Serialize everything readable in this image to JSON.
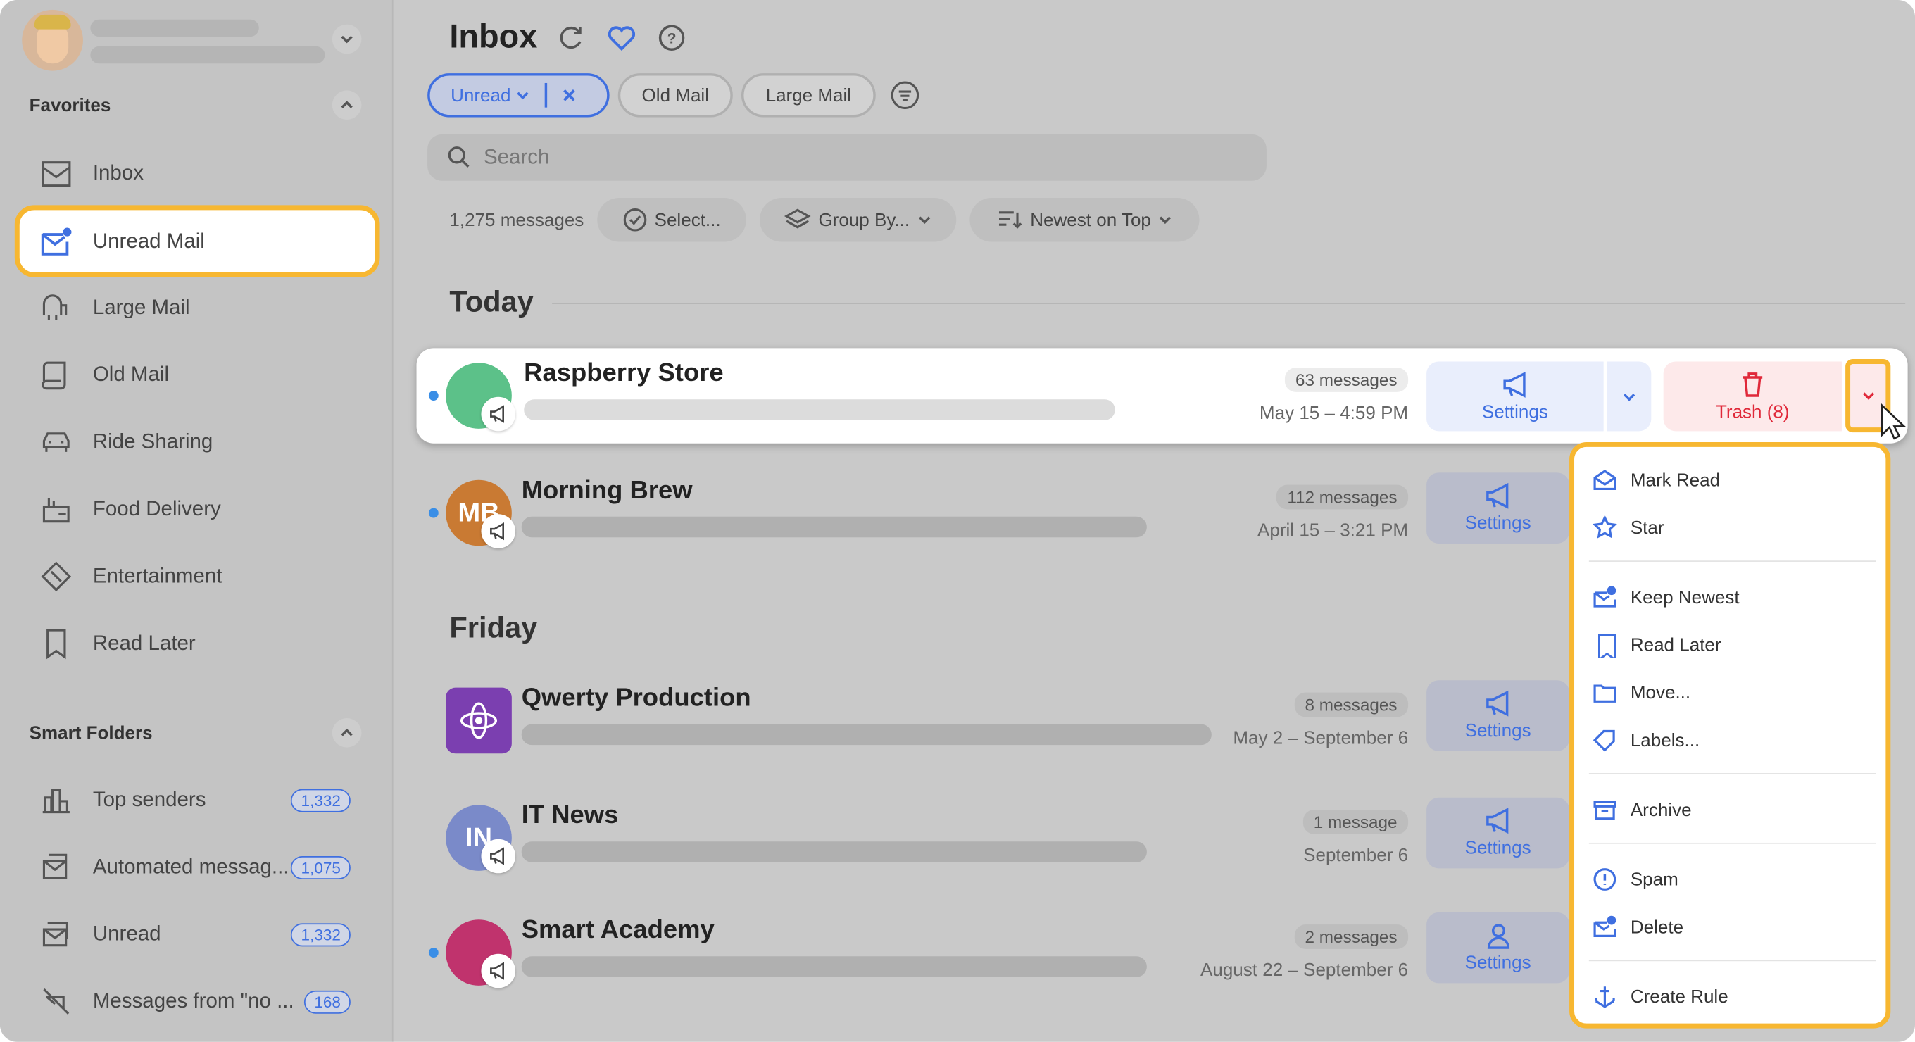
{
  "colors": {
    "accent": "#3f6fe0",
    "highlight": "#f7b731",
    "danger": "#e0293a"
  },
  "sidebar": {
    "favorites_label": "Favorites",
    "favorites": [
      {
        "label": "Inbox",
        "icon": "inbox-icon"
      },
      {
        "label": "Unread Mail",
        "icon": "unread-mail-icon",
        "active": true
      },
      {
        "label": "Large Mail",
        "icon": "elephant-icon"
      },
      {
        "label": "Old Mail",
        "icon": "scroll-icon"
      },
      {
        "label": "Ride Sharing",
        "icon": "car-icon"
      },
      {
        "label": "Food Delivery",
        "icon": "food-icon"
      },
      {
        "label": "Entertainment",
        "icon": "ticket-icon"
      },
      {
        "label": "Read Later",
        "icon": "bookmark-icon"
      }
    ],
    "smart_label": "Smart Folders",
    "smart": [
      {
        "label": "Top senders",
        "count": "1,332",
        "icon": "chart-icon"
      },
      {
        "label": "Automated messag...",
        "count": "1,075",
        "icon": "robot-mail-icon"
      },
      {
        "label": "Unread",
        "count": "1,332",
        "icon": "unread-stack-icon"
      },
      {
        "label": "Messages from \"no ...",
        "count": "168",
        "icon": "no-reply-icon"
      }
    ]
  },
  "header": {
    "title": "Inbox"
  },
  "filters": {
    "active": "Unread",
    "chips": [
      "Old Mail",
      "Large Mail"
    ]
  },
  "search": {
    "placeholder": "Search"
  },
  "toolbar": {
    "count": "1,275 messages",
    "select": "Select...",
    "group": "Group By...",
    "sort": "Newest on Top"
  },
  "groups": [
    "Today",
    "Friday"
  ],
  "senders": [
    {
      "name": "Raspberry Store",
      "count": "63 messages",
      "date": "May 15 – 4:59 PM",
      "unread": true,
      "avatar_color": "#5cc189",
      "initials": "",
      "action": "Settings",
      "trash": "Trash (8)"
    },
    {
      "name": "Morning Brew",
      "count": "112 messages",
      "date": "April 15 – 3:21 PM",
      "unread": true,
      "avatar_color": "#c97a33",
      "initials": "MB",
      "action": "Settings"
    },
    {
      "name": "Qwerty Production",
      "count": "8 messages",
      "date": "May 2 – September 6",
      "unread": false,
      "avatar_color": "#7b3fb0",
      "initials": "",
      "action": "Settings"
    },
    {
      "name": "IT News",
      "count": "1 message",
      "date": "September 6",
      "unread": false,
      "avatar_color": "#7a8ac9",
      "initials": "IN",
      "action": "Settings"
    },
    {
      "name": "Smart Academy",
      "count": "2 messages",
      "date": "August 22 – September 6",
      "unread": true,
      "avatar_color": "#c0336d",
      "initials": "",
      "action": "Settings"
    }
  ],
  "menu": [
    {
      "label": "Mark Read",
      "icon": "envelope-open-icon"
    },
    {
      "label": "Star",
      "icon": "star-icon"
    },
    {
      "divider": true
    },
    {
      "label": "Keep Newest",
      "icon": "keep-newest-icon"
    },
    {
      "label": "Read Later",
      "icon": "bookmark-icon"
    },
    {
      "label": "Move...",
      "icon": "folder-icon"
    },
    {
      "label": "Labels...",
      "icon": "tag-icon"
    },
    {
      "divider": true
    },
    {
      "label": "Archive",
      "icon": "archive-icon"
    },
    {
      "divider": true
    },
    {
      "label": "Spam",
      "icon": "spam-icon"
    },
    {
      "label": "Delete",
      "icon": "delete-mail-icon"
    },
    {
      "divider": true
    },
    {
      "label": "Create Rule",
      "icon": "create-rule-icon"
    }
  ]
}
